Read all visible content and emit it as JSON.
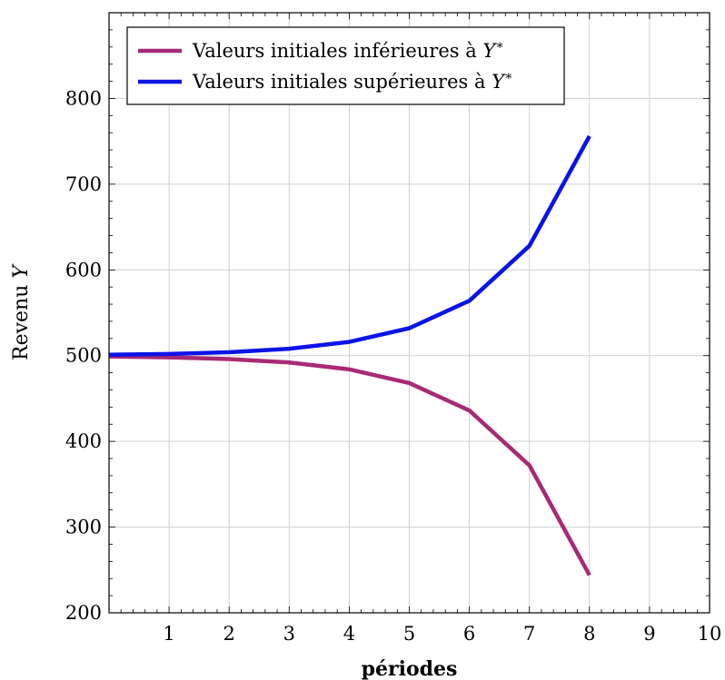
{
  "chart_data": {
    "type": "line",
    "xlabel": "périodes",
    "ylabel": "Revenu Y",
    "xlim": [
      0,
      10
    ],
    "ylim": [
      200,
      900
    ],
    "x_ticks": [
      1,
      2,
      3,
      4,
      5,
      6,
      7,
      8,
      9,
      10
    ],
    "y_ticks": [
      200,
      300,
      400,
      500,
      600,
      700,
      800
    ],
    "grid": true,
    "legend_position": "top-left",
    "series": [
      {
        "name": "Valeurs initiales inférieures à Y*",
        "color": "#a82a74",
        "x": [
          0,
          1,
          2,
          3,
          4,
          5,
          6,
          7,
          8
        ],
        "values": [
          499,
          498,
          496,
          492,
          484,
          468,
          436,
          372,
          244
        ]
      },
      {
        "name": "Valeurs initiales supérieures à Y*",
        "color": "#0a14e6",
        "x": [
          0,
          1,
          2,
          3,
          4,
          5,
          6,
          7,
          8
        ],
        "values": [
          501,
          502,
          504,
          508,
          516,
          532,
          564,
          628,
          756
        ]
      }
    ],
    "legend_entries": [
      {
        "prefix": "Valeurs initiales inférieures à ",
        "symbol": "Y",
        "sup": "∗"
      },
      {
        "prefix": "Valeurs initiales supérieures à ",
        "symbol": "Y",
        "sup": "∗"
      }
    ],
    "ylabel_parts": {
      "text": "Revenu ",
      "symbol": "Y"
    }
  }
}
